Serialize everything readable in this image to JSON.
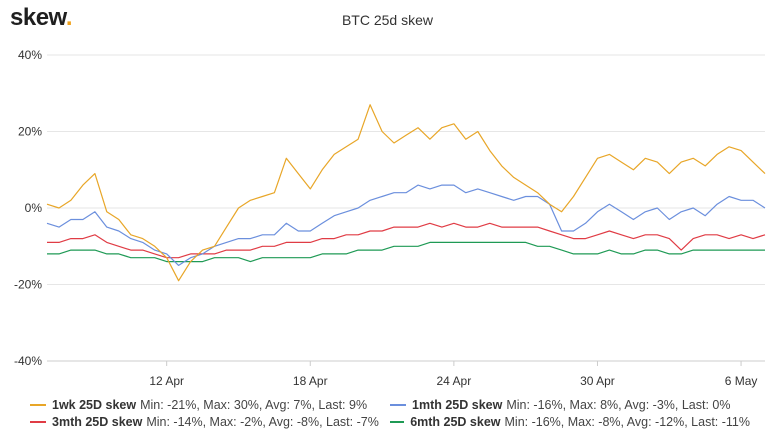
{
  "header": {
    "logo_text": "skew",
    "logo_dot": ".",
    "title": "BTC 25d skew"
  },
  "chart_data": {
    "type": "line",
    "title": "BTC 25d skew",
    "ylim": [
      -40,
      40
    ],
    "y_ticks": [
      -40,
      -20,
      0,
      20,
      40
    ],
    "y_tick_labels": [
      "-40%",
      "-20%",
      "0%",
      "20%",
      "40%"
    ],
    "x_range": [
      "2020-04-07",
      "2020-05-07"
    ],
    "x_ticks": [
      "2020-04-12",
      "2020-04-18",
      "2020-04-24",
      "2020-04-30",
      "2020-05-06"
    ],
    "x_tick_labels": [
      "12 Apr",
      "18 Apr",
      "24 Apr",
      "30 Apr",
      "6 May"
    ],
    "grid": true,
    "legend_position": "bottom",
    "series": [
      {
        "name": "1wk 25D skew",
        "color": "#e8a628",
        "stats": "Min: -21%, Max: 30%, Avg: 7%, Last: 9%",
        "points": [
          [
            "2020-04-07",
            1
          ],
          [
            "2020-04-07T12",
            0
          ],
          [
            "2020-04-08",
            2
          ],
          [
            "2020-04-08T12",
            6
          ],
          [
            "2020-04-09",
            9
          ],
          [
            "2020-04-09T12",
            -1
          ],
          [
            "2020-04-10",
            -3
          ],
          [
            "2020-04-10T12",
            -7
          ],
          [
            "2020-04-11",
            -8
          ],
          [
            "2020-04-11T12",
            -10
          ],
          [
            "2020-04-12",
            -13
          ],
          [
            "2020-04-12T12",
            -19
          ],
          [
            "2020-04-13",
            -14
          ],
          [
            "2020-04-13T12",
            -11
          ],
          [
            "2020-04-14",
            -10
          ],
          [
            "2020-04-14T12",
            -5
          ],
          [
            "2020-04-15",
            0
          ],
          [
            "2020-04-15T12",
            2
          ],
          [
            "2020-04-16",
            3
          ],
          [
            "2020-04-16T12",
            4
          ],
          [
            "2020-04-17",
            13
          ],
          [
            "2020-04-17T12",
            9
          ],
          [
            "2020-04-18",
            5
          ],
          [
            "2020-04-18T12",
            10
          ],
          [
            "2020-04-19",
            14
          ],
          [
            "2020-04-19T12",
            16
          ],
          [
            "2020-04-20",
            18
          ],
          [
            "2020-04-20T12",
            27
          ],
          [
            "2020-04-21",
            20
          ],
          [
            "2020-04-21T12",
            17
          ],
          [
            "2020-04-22",
            19
          ],
          [
            "2020-04-22T12",
            21
          ],
          [
            "2020-04-23",
            18
          ],
          [
            "2020-04-23T12",
            21
          ],
          [
            "2020-04-24",
            22
          ],
          [
            "2020-04-24T12",
            18
          ],
          [
            "2020-04-25",
            20
          ],
          [
            "2020-04-25T12",
            15
          ],
          [
            "2020-04-26",
            11
          ],
          [
            "2020-04-26T12",
            8
          ],
          [
            "2020-04-27",
            6
          ],
          [
            "2020-04-27T12",
            4
          ],
          [
            "2020-04-28",
            1
          ],
          [
            "2020-04-28T12",
            -1
          ],
          [
            "2020-04-29",
            3
          ],
          [
            "2020-04-29T12",
            8
          ],
          [
            "2020-04-30",
            13
          ],
          [
            "2020-04-30T12",
            14
          ],
          [
            "2020-05-01",
            12
          ],
          [
            "2020-05-01T12",
            10
          ],
          [
            "2020-05-02",
            13
          ],
          [
            "2020-05-02T12",
            12
          ],
          [
            "2020-05-03",
            9
          ],
          [
            "2020-05-03T12",
            12
          ],
          [
            "2020-05-04",
            13
          ],
          [
            "2020-05-04T12",
            11
          ],
          [
            "2020-05-05",
            14
          ],
          [
            "2020-05-05T12",
            16
          ],
          [
            "2020-05-06",
            15
          ],
          [
            "2020-05-06T12",
            12
          ],
          [
            "2020-05-07",
            9
          ]
        ]
      },
      {
        "name": "1mth 25D skew",
        "color": "#6b8fdd",
        "stats": "Min: -16%, Max: 8%, Avg: -3%, Last: 0%",
        "points": [
          [
            "2020-04-07",
            -4
          ],
          [
            "2020-04-07T12",
            -5
          ],
          [
            "2020-04-08",
            -3
          ],
          [
            "2020-04-08T12",
            -3
          ],
          [
            "2020-04-09",
            -1
          ],
          [
            "2020-04-09T12",
            -5
          ],
          [
            "2020-04-10",
            -6
          ],
          [
            "2020-04-10T12",
            -8
          ],
          [
            "2020-04-11",
            -9
          ],
          [
            "2020-04-11T12",
            -11
          ],
          [
            "2020-04-12",
            -12
          ],
          [
            "2020-04-12T12",
            -15
          ],
          [
            "2020-04-13",
            -13
          ],
          [
            "2020-04-13T12",
            -12
          ],
          [
            "2020-04-14",
            -10
          ],
          [
            "2020-04-14T12",
            -9
          ],
          [
            "2020-04-15",
            -8
          ],
          [
            "2020-04-15T12",
            -8
          ],
          [
            "2020-04-16",
            -7
          ],
          [
            "2020-04-16T12",
            -7
          ],
          [
            "2020-04-17",
            -4
          ],
          [
            "2020-04-17T12",
            -6
          ],
          [
            "2020-04-18",
            -6
          ],
          [
            "2020-04-18T12",
            -4
          ],
          [
            "2020-04-19",
            -2
          ],
          [
            "2020-04-19T12",
            -1
          ],
          [
            "2020-04-20",
            0
          ],
          [
            "2020-04-20T12",
            2
          ],
          [
            "2020-04-21",
            3
          ],
          [
            "2020-04-21T12",
            4
          ],
          [
            "2020-04-22",
            4
          ],
          [
            "2020-04-22T12",
            6
          ],
          [
            "2020-04-23",
            5
          ],
          [
            "2020-04-23T12",
            6
          ],
          [
            "2020-04-24",
            6
          ],
          [
            "2020-04-24T12",
            4
          ],
          [
            "2020-04-25",
            5
          ],
          [
            "2020-04-25T12",
            4
          ],
          [
            "2020-04-26",
            3
          ],
          [
            "2020-04-26T12",
            2
          ],
          [
            "2020-04-27",
            3
          ],
          [
            "2020-04-27T12",
            3
          ],
          [
            "2020-04-28",
            1
          ],
          [
            "2020-04-28T12",
            -6
          ],
          [
            "2020-04-29",
            -6
          ],
          [
            "2020-04-29T12",
            -4
          ],
          [
            "2020-04-30",
            -1
          ],
          [
            "2020-04-30T12",
            1
          ],
          [
            "2020-05-01",
            -1
          ],
          [
            "2020-05-01T12",
            -3
          ],
          [
            "2020-05-02",
            -1
          ],
          [
            "2020-05-02T12",
            0
          ],
          [
            "2020-05-03",
            -3
          ],
          [
            "2020-05-03T12",
            -1
          ],
          [
            "2020-05-04",
            0
          ],
          [
            "2020-05-04T12",
            -2
          ],
          [
            "2020-05-05",
            1
          ],
          [
            "2020-05-05T12",
            3
          ],
          [
            "2020-05-06",
            2
          ],
          [
            "2020-05-06T12",
            2
          ],
          [
            "2020-05-07",
            0
          ]
        ]
      },
      {
        "name": "3mth 25D skew",
        "color": "#e03c45",
        "stats": "Min: -14%, Max: -2%, Avg: -8%, Last: -7%",
        "points": [
          [
            "2020-04-07",
            -9
          ],
          [
            "2020-04-07T12",
            -9
          ],
          [
            "2020-04-08",
            -8
          ],
          [
            "2020-04-08T12",
            -8
          ],
          [
            "2020-04-09",
            -7
          ],
          [
            "2020-04-09T12",
            -9
          ],
          [
            "2020-04-10",
            -10
          ],
          [
            "2020-04-10T12",
            -11
          ],
          [
            "2020-04-11",
            -11
          ],
          [
            "2020-04-11T12",
            -12
          ],
          [
            "2020-04-12",
            -13
          ],
          [
            "2020-04-12T12",
            -13
          ],
          [
            "2020-04-13",
            -12
          ],
          [
            "2020-04-13T12",
            -12
          ],
          [
            "2020-04-14",
            -12
          ],
          [
            "2020-04-14T12",
            -11
          ],
          [
            "2020-04-15",
            -11
          ],
          [
            "2020-04-15T12",
            -11
          ],
          [
            "2020-04-16",
            -10
          ],
          [
            "2020-04-16T12",
            -10
          ],
          [
            "2020-04-17",
            -9
          ],
          [
            "2020-04-17T12",
            -9
          ],
          [
            "2020-04-18",
            -9
          ],
          [
            "2020-04-18T12",
            -8
          ],
          [
            "2020-04-19",
            -8
          ],
          [
            "2020-04-19T12",
            -7
          ],
          [
            "2020-04-20",
            -7
          ],
          [
            "2020-04-20T12",
            -6
          ],
          [
            "2020-04-21",
            -6
          ],
          [
            "2020-04-21T12",
            -5
          ],
          [
            "2020-04-22",
            -5
          ],
          [
            "2020-04-22T12",
            -5
          ],
          [
            "2020-04-23",
            -4
          ],
          [
            "2020-04-23T12",
            -5
          ],
          [
            "2020-04-24",
            -4
          ],
          [
            "2020-04-24T12",
            -5
          ],
          [
            "2020-04-25",
            -5
          ],
          [
            "2020-04-25T12",
            -4
          ],
          [
            "2020-04-26",
            -5
          ],
          [
            "2020-04-26T12",
            -5
          ],
          [
            "2020-04-27",
            -5
          ],
          [
            "2020-04-27T12",
            -5
          ],
          [
            "2020-04-28",
            -6
          ],
          [
            "2020-04-28T12",
            -7
          ],
          [
            "2020-04-29",
            -8
          ],
          [
            "2020-04-29T12",
            -8
          ],
          [
            "2020-04-30",
            -7
          ],
          [
            "2020-04-30T12",
            -6
          ],
          [
            "2020-05-01",
            -7
          ],
          [
            "2020-05-01T12",
            -8
          ],
          [
            "2020-05-02",
            -7
          ],
          [
            "2020-05-02T12",
            -7
          ],
          [
            "2020-05-03",
            -8
          ],
          [
            "2020-05-03T12",
            -11
          ],
          [
            "2020-05-04",
            -8
          ],
          [
            "2020-05-04T12",
            -7
          ],
          [
            "2020-05-05",
            -7
          ],
          [
            "2020-05-05T12",
            -8
          ],
          [
            "2020-05-06",
            -7
          ],
          [
            "2020-05-06T12",
            -8
          ],
          [
            "2020-05-07",
            -7
          ]
        ]
      },
      {
        "name": "6mth 25D skew",
        "color": "#1f9a55",
        "stats": "Min: -16%, Max: -8%, Avg: -12%, Last: -11%",
        "points": [
          [
            "2020-04-07",
            -12
          ],
          [
            "2020-04-07T12",
            -12
          ],
          [
            "2020-04-08",
            -11
          ],
          [
            "2020-04-08T12",
            -11
          ],
          [
            "2020-04-09",
            -11
          ],
          [
            "2020-04-09T12",
            -12
          ],
          [
            "2020-04-10",
            -12
          ],
          [
            "2020-04-10T12",
            -13
          ],
          [
            "2020-04-11",
            -13
          ],
          [
            "2020-04-11T12",
            -13
          ],
          [
            "2020-04-12",
            -14
          ],
          [
            "2020-04-12T12",
            -14
          ],
          [
            "2020-04-13",
            -14
          ],
          [
            "2020-04-13T12",
            -14
          ],
          [
            "2020-04-14",
            -13
          ],
          [
            "2020-04-14T12",
            -13
          ],
          [
            "2020-04-15",
            -13
          ],
          [
            "2020-04-15T12",
            -14
          ],
          [
            "2020-04-16",
            -13
          ],
          [
            "2020-04-16T12",
            -13
          ],
          [
            "2020-04-17",
            -13
          ],
          [
            "2020-04-17T12",
            -13
          ],
          [
            "2020-04-18",
            -13
          ],
          [
            "2020-04-18T12",
            -12
          ],
          [
            "2020-04-19",
            -12
          ],
          [
            "2020-04-19T12",
            -12
          ],
          [
            "2020-04-20",
            -11
          ],
          [
            "2020-04-20T12",
            -11
          ],
          [
            "2020-04-21",
            -11
          ],
          [
            "2020-04-21T12",
            -10
          ],
          [
            "2020-04-22",
            -10
          ],
          [
            "2020-04-22T12",
            -10
          ],
          [
            "2020-04-23",
            -9
          ],
          [
            "2020-04-23T12",
            -9
          ],
          [
            "2020-04-24",
            -9
          ],
          [
            "2020-04-24T12",
            -9
          ],
          [
            "2020-04-25",
            -9
          ],
          [
            "2020-04-25T12",
            -9
          ],
          [
            "2020-04-26",
            -9
          ],
          [
            "2020-04-26T12",
            -9
          ],
          [
            "2020-04-27",
            -9
          ],
          [
            "2020-04-27T12",
            -10
          ],
          [
            "2020-04-28",
            -10
          ],
          [
            "2020-04-28T12",
            -11
          ],
          [
            "2020-04-29",
            -12
          ],
          [
            "2020-04-29T12",
            -12
          ],
          [
            "2020-04-30",
            -12
          ],
          [
            "2020-04-30T12",
            -11
          ],
          [
            "2020-05-01",
            -12
          ],
          [
            "2020-05-01T12",
            -12
          ],
          [
            "2020-05-02",
            -11
          ],
          [
            "2020-05-02T12",
            -11
          ],
          [
            "2020-05-03",
            -12
          ],
          [
            "2020-05-03T12",
            -12
          ],
          [
            "2020-05-04",
            -11
          ],
          [
            "2020-05-04T12",
            -11
          ],
          [
            "2020-05-05",
            -11
          ],
          [
            "2020-05-05T12",
            -11
          ],
          [
            "2020-05-06",
            -11
          ],
          [
            "2020-05-06T12",
            -11
          ],
          [
            "2020-05-07",
            -11
          ]
        ]
      }
    ]
  }
}
